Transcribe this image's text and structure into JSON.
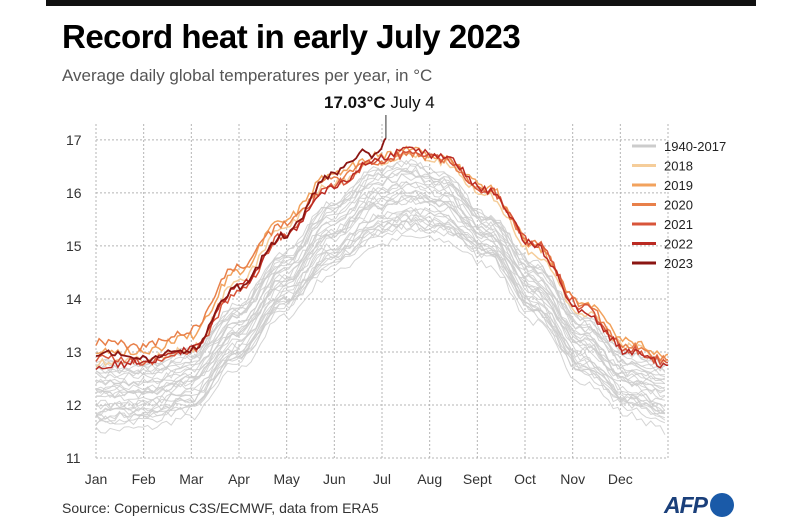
{
  "header": {
    "title": "Record heat in early July 2023",
    "subtitle": "Average daily global temperatures per year, in °C"
  },
  "footer": {
    "source": "Source: Copernicus C3S/ECMWF, data from ERA5",
    "logo_text": "AFP"
  },
  "chart_data": {
    "type": "line",
    "title": "Record heat in early July 2023",
    "subtitle": "Average daily global temperatures per year, in °C",
    "xlabel": "",
    "ylabel": "",
    "x_ticks": [
      "Jan",
      "Feb",
      "Mar",
      "Apr",
      "May",
      "Jun",
      "Jul",
      "Aug",
      "Sept",
      "Oct",
      "Nov",
      "Dec"
    ],
    "xlim": [
      0,
      365
    ],
    "ylim": [
      11,
      17.3
    ],
    "y_ticks": [
      11,
      12,
      13,
      14,
      15,
      16,
      17
    ],
    "grid": true,
    "legend_position": "top-right",
    "annotation": {
      "text": "17.03°C July 4",
      "value_label": "17.03°C",
      "date_label": "July 4",
      "x": 185,
      "y": 17.03
    },
    "background_band": {
      "name": "1940-2017",
      "color": "#cccccc",
      "count": 30,
      "x": [
        0,
        30,
        60,
        90,
        120,
        150,
        180,
        200,
        220,
        250,
        280,
        310,
        340,
        365
      ],
      "y_min": [
        11.55,
        11.6,
        11.8,
        12.7,
        13.7,
        14.5,
        15.05,
        15.2,
        15.15,
        14.7,
        13.6,
        12.5,
        11.85,
        11.55
      ],
      "y_max": [
        12.85,
        12.8,
        13.05,
        13.9,
        14.9,
        15.85,
        16.5,
        16.6,
        16.4,
        15.6,
        14.7,
        13.7,
        13.0,
        12.85
      ]
    },
    "series": [
      {
        "name": "1940-2017",
        "color": "#cccccc",
        "x": [
          0,
          365
        ],
        "y": [
          12.2,
          12.2
        ]
      },
      {
        "name": "2018",
        "color": "#f5cd9a",
        "x": [
          0,
          30,
          60,
          90,
          120,
          150,
          180,
          200,
          220,
          250,
          280,
          310,
          340,
          365
        ],
        "y": [
          12.8,
          12.85,
          13.05,
          14.3,
          15.35,
          16.15,
          16.6,
          16.75,
          16.6,
          15.95,
          14.85,
          13.75,
          13.1,
          12.85
        ]
      },
      {
        "name": "2019",
        "color": "#f2a25d",
        "x": [
          0,
          30,
          60,
          90,
          120,
          150,
          180,
          200,
          220,
          250,
          280,
          310,
          340,
          365
        ],
        "y": [
          13.05,
          13.0,
          13.3,
          14.5,
          15.5,
          16.35,
          16.7,
          16.8,
          16.7,
          16.1,
          15.0,
          13.95,
          13.2,
          12.95
        ]
      },
      {
        "name": "2020",
        "color": "#e8804a",
        "x": [
          0,
          30,
          60,
          90,
          120,
          150,
          180,
          200,
          220,
          250,
          280,
          310,
          340,
          365
        ],
        "y": [
          13.2,
          13.1,
          13.4,
          14.6,
          15.4,
          16.25,
          16.6,
          16.75,
          16.65,
          16.0,
          15.05,
          13.9,
          13.1,
          12.85
        ]
      },
      {
        "name": "2021",
        "color": "#d8553a",
        "x": [
          0,
          30,
          60,
          90,
          120,
          150,
          180,
          200,
          220,
          250,
          280,
          310,
          340,
          365
        ],
        "y": [
          12.9,
          12.8,
          13.0,
          14.1,
          15.2,
          16.15,
          16.6,
          16.75,
          16.65,
          16.05,
          15.05,
          13.85,
          13.05,
          12.8
        ]
      },
      {
        "name": "2022",
        "color": "#bb2a22",
        "x": [
          0,
          30,
          60,
          90,
          120,
          150,
          180,
          200,
          220,
          250,
          280,
          310,
          340,
          365
        ],
        "y": [
          12.75,
          12.8,
          13.05,
          14.2,
          15.2,
          16.1,
          16.65,
          16.8,
          16.7,
          16.05,
          15.0,
          13.8,
          13.0,
          12.75
        ]
      },
      {
        "name": "2023",
        "color": "#8b1512",
        "x": [
          0,
          30,
          60,
          90,
          120,
          150,
          170,
          180,
          185
        ],
        "y": [
          13.0,
          12.85,
          13.05,
          14.2,
          15.2,
          16.35,
          16.75,
          16.7,
          17.03
        ]
      }
    ]
  }
}
